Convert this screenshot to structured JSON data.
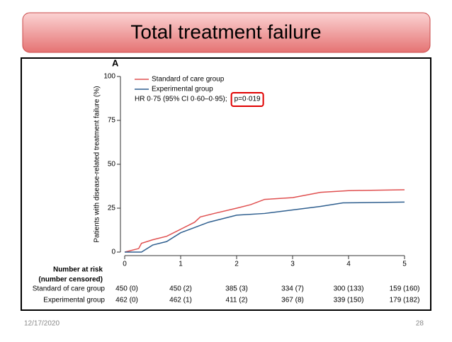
{
  "slide_title": "Total treatment failure",
  "footer": {
    "date": "12/17/2020",
    "page": "28"
  },
  "chart_data": {
    "type": "line",
    "panel": "A",
    "y_label": "Patients with disease-related treatment failure (%)",
    "xlim": [
      0,
      5
    ],
    "xticks": [
      0,
      1,
      2,
      3,
      4,
      5
    ],
    "ylim": [
      0,
      100
    ],
    "yticks": [
      0,
      25,
      50,
      75,
      100
    ],
    "series": [
      {
        "name": "Standard of care group",
        "color": "#e05050",
        "x": [
          0,
          0.25,
          0.3,
          0.5,
          0.75,
          1.0,
          1.25,
          1.35,
          1.6,
          2.0,
          2.25,
          2.5,
          3.0,
          3.5,
          4.0,
          5.0
        ],
        "values": [
          0,
          2,
          5,
          7,
          9,
          13,
          17,
          20,
          22,
          25,
          27,
          30,
          31,
          34,
          35,
          35.5
        ]
      },
      {
        "name": "Experimental group",
        "color": "#2f5f8f",
        "x": [
          0,
          0.3,
          0.5,
          0.75,
          1.0,
          1.25,
          1.5,
          1.75,
          2.0,
          2.5,
          3.0,
          3.5,
          3.9,
          5.0
        ],
        "values": [
          0,
          0,
          4,
          6,
          11,
          14,
          17,
          19,
          21,
          22,
          24,
          26,
          28,
          28.5
        ]
      }
    ],
    "annotations": [
      "HR 0·75 (95% CI 0·60–0·95);",
      "p=0·019"
    ],
    "risk_table": {
      "title": [
        "Number at risk",
        "(number censored)"
      ],
      "rows": [
        {
          "label": "Standard of care group",
          "values": [
            "450 (0)",
            "450 (2)",
            "385 (3)",
            "334 (7)",
            "300 (133)",
            "159 (160)"
          ]
        },
        {
          "label": "Experimental group",
          "values": [
            "462 (0)",
            "462 (1)",
            "411 (2)",
            "367 (8)",
            "339 (150)",
            "179 (182)"
          ]
        }
      ]
    }
  }
}
